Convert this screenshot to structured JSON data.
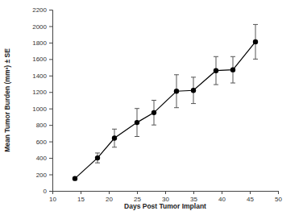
{
  "chart_data": {
    "type": "line",
    "x_label": "Days Post Tumor Implant",
    "y_label": "Mean Tumor Burden (mm³) ± SE",
    "x": [
      14,
      18,
      21,
      25,
      28,
      32,
      35,
      39,
      42,
      46
    ],
    "values": [
      150,
      400,
      640,
      830,
      950,
      1210,
      1220,
      1460,
      1470,
      1810
    ],
    "errors": [
      10,
      60,
      110,
      170,
      150,
      200,
      160,
      170,
      160,
      210
    ],
    "color": "#000000",
    "marker": "circle",
    "line_style": "solid",
    "xlim": [
      10,
      50
    ],
    "xticks": [
      10,
      15,
      20,
      25,
      30,
      35,
      40,
      45,
      50
    ],
    "ylim": [
      0,
      2200
    ],
    "yticks": [
      0,
      200,
      400,
      600,
      800,
      1000,
      1200,
      1400,
      1600,
      1800,
      2000,
      2200
    ],
    "grid": false
  }
}
